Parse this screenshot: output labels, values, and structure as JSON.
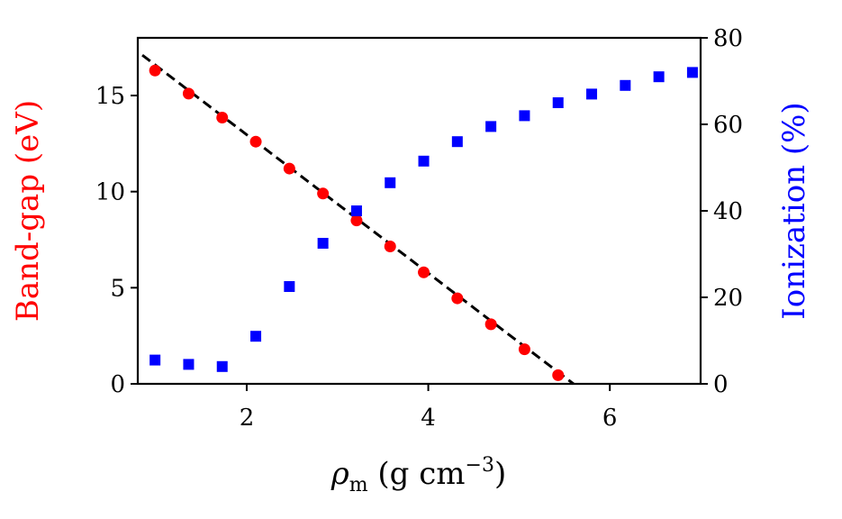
{
  "chart_data": {
    "type": "scatter",
    "title": "",
    "xlabel": "ρm (g cm−3)",
    "xlabel_parts": {
      "symbol": "ρ",
      "subscript": "m",
      "unit_open": " (g cm",
      "exponent": "−3",
      "unit_close": ")"
    },
    "ylabel_left": "Band-gap (eV)",
    "ylabel_right": "Ionization (%)",
    "xlim": [
      0.8,
      7.0
    ],
    "ylim_left": [
      0,
      18
    ],
    "ylim_right": [
      0,
      80
    ],
    "x_ticks": [
      2,
      4,
      6
    ],
    "x_tick_labels": [
      "2",
      "4",
      "6"
    ],
    "y_left_ticks": [
      0,
      5,
      10,
      15
    ],
    "y_left_tick_labels": [
      "0",
      "5",
      "10",
      "15"
    ],
    "y_right_ticks": [
      0,
      20,
      40,
      60,
      80
    ],
    "y_right_tick_labels": [
      "0",
      "20",
      "40",
      "60",
      "80"
    ],
    "grid": false,
    "legend": "none",
    "colors": {
      "bandgap": "#ff0000",
      "ionization": "#0000ff",
      "fit": "#000000",
      "axis": "#000000"
    },
    "series": [
      {
        "axis": "left",
        "marker": "circle",
        "x": [
          0.99,
          1.36,
          1.73,
          2.1,
          2.47,
          2.84,
          3.21,
          3.58,
          3.95,
          4.32,
          4.69,
          5.06,
          5.43
        ],
        "y": [
          16.3,
          15.1,
          13.85,
          12.6,
          11.2,
          9.9,
          8.5,
          7.15,
          5.8,
          4.45,
          3.1,
          1.8,
          0.45
        ]
      },
      {
        "axis": "right",
        "marker": "square",
        "x": [
          0.99,
          1.36,
          1.73,
          2.1,
          2.47,
          2.84,
          3.21,
          3.58,
          3.95,
          4.32,
          4.69,
          5.06,
          5.43,
          5.8,
          6.17,
          6.54,
          6.91
        ],
        "y": [
          5.5,
          4.5,
          4.0,
          11.0,
          22.5,
          32.5,
          40.0,
          46.5,
          51.5,
          56.0,
          59.5,
          62.0,
          65.0,
          67.0,
          69.0,
          71.0,
          72.0
        ]
      }
    ],
    "fit_line": {
      "axis": "left",
      "style": "dashed",
      "x": [
        0.85,
        5.6
      ],
      "y": [
        17.1,
        0.0
      ]
    }
  }
}
